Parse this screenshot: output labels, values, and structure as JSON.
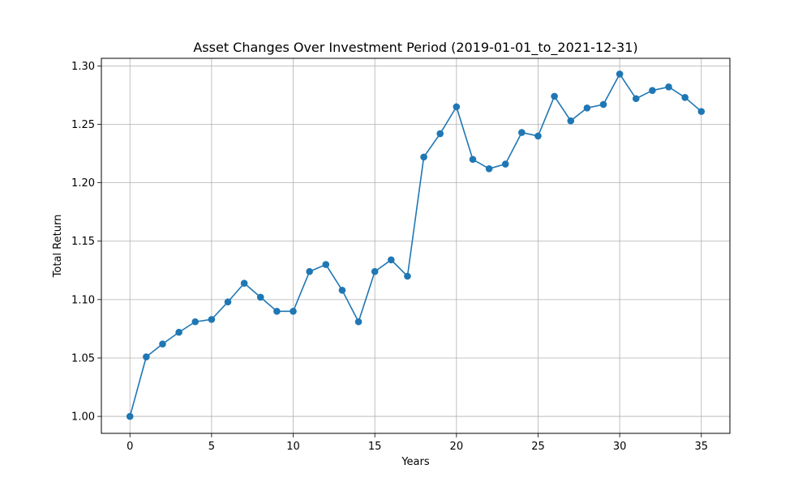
{
  "chart_data": {
    "type": "line",
    "title": "Asset Changes Over Investment Period (2019-01-01_to_2021-12-31)",
    "xlabel": "Years",
    "ylabel": "Total Return",
    "xlim": [
      -1.75,
      36.75
    ],
    "ylim": [
      0.9855,
      1.3065
    ],
    "x_ticks": [
      0,
      5,
      10,
      15,
      20,
      25,
      30,
      35
    ],
    "y_ticks": [
      1.0,
      1.05,
      1.1,
      1.15,
      1.2,
      1.25,
      1.3
    ],
    "y_tick_labels": [
      "1.00",
      "1.05",
      "1.10",
      "1.15",
      "1.20",
      "1.25",
      "1.30"
    ],
    "grid": true,
    "marker": "circle",
    "line_color": "#1f77b4",
    "series": [
      {
        "x": [
          0,
          1,
          2,
          3,
          4,
          5,
          6,
          7,
          8,
          9,
          10,
          11,
          12,
          13,
          14,
          15,
          16,
          17,
          18,
          19,
          20,
          21,
          22,
          23,
          24,
          25,
          26,
          27,
          28,
          29,
          30,
          31,
          32,
          33,
          34,
          35
        ],
        "values": [
          1.0,
          1.051,
          1.062,
          1.072,
          1.081,
          1.083,
          1.098,
          1.114,
          1.102,
          1.09,
          1.09,
          1.124,
          1.13,
          1.108,
          1.081,
          1.124,
          1.134,
          1.12,
          1.222,
          1.242,
          1.265,
          1.22,
          1.212,
          1.216,
          1.243,
          1.24,
          1.274,
          1.253,
          1.264,
          1.267,
          1.293,
          1.272,
          1.279,
          1.282,
          1.273,
          1.261
        ]
      }
    ]
  }
}
